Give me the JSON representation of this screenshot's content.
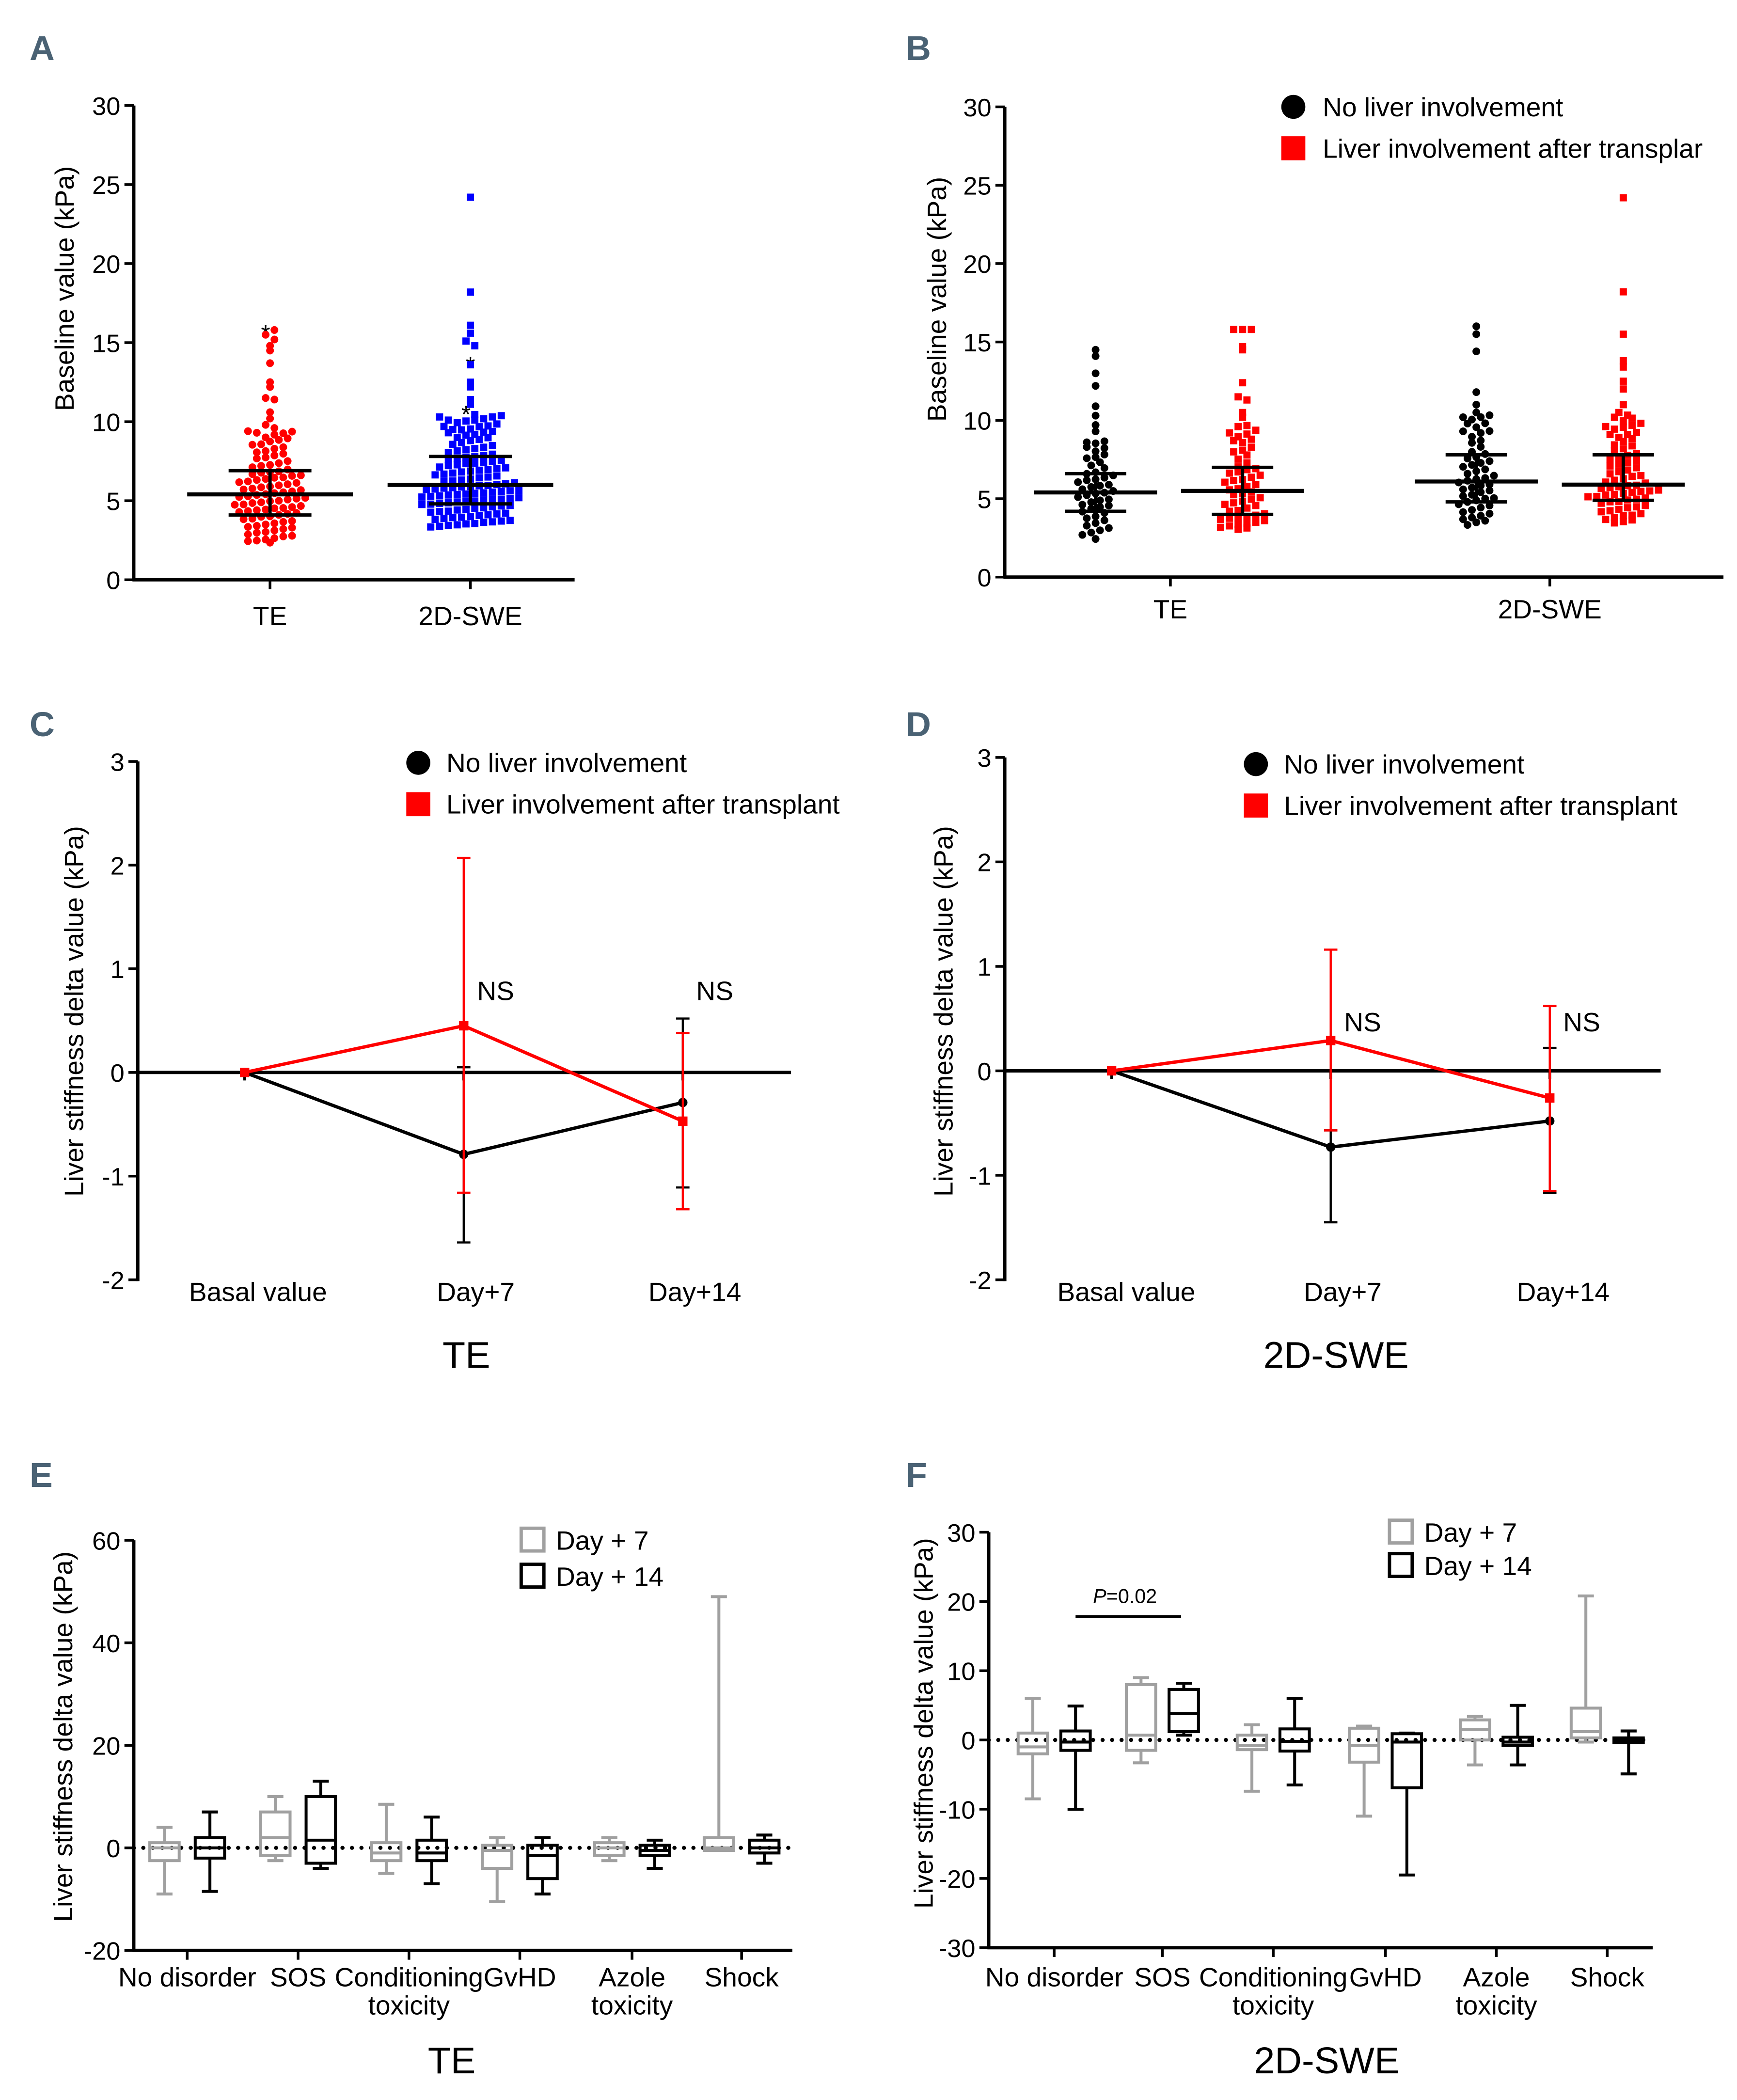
{
  "panel_labels": {
    "A": "A",
    "B": "B",
    "C": "C",
    "D": "D",
    "E": "E",
    "F": "F"
  },
  "colors": {
    "red": "#ff0000",
    "blue": "#0000ff",
    "black": "#000000",
    "gray": "#a0a0a0",
    "panel_label": "#4a6274"
  },
  "legend": {
    "no_liver": "No liver involvement",
    "liver_after": "Liver involvement after transplant",
    "liver_after_truncated": "Liver involvement after transplar",
    "day7": "Day + 7",
    "day14": "Day + 14"
  },
  "chart_data": [
    {
      "id": "A",
      "type": "scatter",
      "ylabel": "Baseline value (kPa)",
      "ylim": [
        0,
        30
      ],
      "yticks": [
        0,
        5,
        10,
        15,
        20,
        25,
        30
      ],
      "categories": [
        "TE",
        "2D-SWE"
      ],
      "groups": [
        {
          "category": "TE",
          "color": "#ff0000",
          "marker": "circle",
          "n": 110,
          "min": 2.3,
          "q1": 4.1,
          "median": 5.4,
          "q3": 6.9,
          "max": 15.8,
          "high": [
            15.8,
            15.8,
            15.5,
            15.2,
            14.8,
            14.5,
            13.7,
            12.5,
            12.2,
            11.5,
            11.4,
            10.6,
            10.2,
            9.8,
            9.6,
            9.4,
            9.3
          ],
          "asterisks": [
            15.8
          ]
        },
        {
          "category": "2D-SWE",
          "color": "#0000ff",
          "marker": "square",
          "n": 140,
          "min": 3.3,
          "q1": 4.8,
          "median": 6.0,
          "q3": 7.8,
          "max": 24.2,
          "high": [
            24.2,
            18.2,
            16.1,
            15.6,
            15.1,
            14.8,
            13.8,
            13.6,
            12.5,
            12.2,
            11.4,
            11.1,
            10.7,
            10.3,
            10.1,
            9.7,
            9.5,
            9.3
          ],
          "asterisks": [
            13.8,
            10.7
          ]
        }
      ]
    },
    {
      "id": "B",
      "type": "scatter",
      "ylabel": "Baseline value (kPa)",
      "ylim": [
        0,
        30
      ],
      "yticks": [
        0,
        5,
        10,
        15,
        20,
        25,
        30
      ],
      "categories": [
        "TE",
        "2D-SWE"
      ],
      "legend": [
        "No liver involvement",
        "Liver involvement after transplant"
      ],
      "groups": [
        {
          "category": "TE",
          "series": "No liver involvement",
          "color": "#000000",
          "marker": "circle",
          "n": 55,
          "min": 2.4,
          "q1": 4.2,
          "median": 5.4,
          "q3": 6.6,
          "max": 14.5,
          "high": [
            14.5,
            14.1,
            13.0,
            12.2,
            10.9,
            10.3,
            9.7,
            9.3,
            8.6,
            8.3
          ]
        },
        {
          "category": "TE",
          "series": "Liver involvement after transplant",
          "color": "#ff0000",
          "marker": "square",
          "n": 65,
          "min": 3.0,
          "q1": 4.0,
          "median": 5.5,
          "q3": 7.0,
          "max": 15.8,
          "high": [
            15.8,
            15.8,
            15.8,
            14.7,
            14.5,
            12.4,
            11.5,
            11.3,
            10.5,
            10.2,
            9.6,
            9.2,
            8.7
          ]
        },
        {
          "category": "2D-SWE",
          "series": "No liver involvement",
          "color": "#000000",
          "marker": "circle",
          "n": 60,
          "min": 3.3,
          "q1": 4.8,
          "median": 6.1,
          "q3": 7.8,
          "max": 16.0,
          "high": [
            16.0,
            15.5,
            14.4,
            11.8,
            11.0,
            10.5,
            10.2,
            9.8,
            9.3
          ]
        },
        {
          "category": "2D-SWE",
          "series": "Liver involvement after transplant",
          "color": "#ff0000",
          "marker": "square",
          "n": 80,
          "min": 3.4,
          "q1": 4.9,
          "median": 5.9,
          "q3": 7.8,
          "max": 24.2,
          "high": [
            24.2,
            18.2,
            15.5,
            13.8,
            13.4,
            12.5,
            12.0,
            11.0,
            10.5,
            10.2,
            9.6,
            9.1
          ]
        }
      ]
    },
    {
      "id": "C",
      "type": "line",
      "title": "TE",
      "ylabel": "Liver stiffness delta value (kPa)",
      "ylim": [
        -2,
        3
      ],
      "yticks": [
        -2,
        -1,
        0,
        1,
        2,
        3
      ],
      "categories": [
        "Basal value",
        "Day+7",
        "Day+14"
      ],
      "series": [
        {
          "name": "No liver involvement",
          "color": "#000000",
          "values": [
            0,
            -0.79,
            -0.29
          ],
          "err_low": [
            0,
            -1.64,
            -1.11
          ],
          "err_high": [
            0,
            0.05,
            0.52
          ]
        },
        {
          "name": "Liver involvement after transplant",
          "color": "#ff0000",
          "values": [
            0,
            0.45,
            -0.47
          ],
          "err_low": [
            0,
            -1.16,
            -1.32
          ],
          "err_high": [
            0,
            2.07,
            0.38
          ]
        }
      ],
      "annotations": [
        {
          "category": "Day+7",
          "text": "NS",
          "y": 0.8
        },
        {
          "category": "Day+14",
          "text": "NS",
          "y": 0.8
        }
      ]
    },
    {
      "id": "D",
      "type": "line",
      "title": "2D-SWE",
      "ylabel": "Liver stiffness delta value (kPa)",
      "ylim": [
        -2,
        3
      ],
      "yticks": [
        -2,
        -1,
        0,
        1,
        2,
        3
      ],
      "categories": [
        "Basal value",
        "Day+7",
        "Day+14"
      ],
      "series": [
        {
          "name": "No liver involvement",
          "color": "#000000",
          "values": [
            0,
            -0.73,
            -0.48
          ],
          "err_low": [
            0,
            -1.45,
            -1.17
          ],
          "err_high": [
            0,
            -0.57,
            0.22
          ]
        },
        {
          "name": "Liver involvement after transplant",
          "color": "#ff0000",
          "values": [
            0,
            0.29,
            -0.26
          ],
          "err_low": [
            0,
            -0.57,
            -1.15
          ],
          "err_high": [
            0,
            1.16,
            0.62
          ]
        }
      ],
      "annotations": [
        {
          "category": "Day+7",
          "text": "NS",
          "y": 0.48
        },
        {
          "category": "Day+14",
          "text": "NS",
          "y": 0.48
        }
      ]
    },
    {
      "id": "E",
      "type": "box",
      "title": "TE",
      "ylabel": "Liver stiffness delta value (kPa)",
      "ylim": [
        -20,
        60
      ],
      "yticks": [
        -20,
        0,
        20,
        40,
        60
      ],
      "categories": [
        [
          "No disorder"
        ],
        [
          "SOS"
        ],
        [
          "Conditioning",
          "toxicity"
        ],
        [
          "GvHD"
        ],
        [
          "Azole",
          "toxicity"
        ],
        [
          "Shock"
        ]
      ],
      "series": [
        {
          "name": "Day + 7",
          "color": "#a0a0a0",
          "boxes": [
            [
              -9,
              -2.5,
              0,
              1,
              4
            ],
            [
              -2.5,
              -1.5,
              2,
              7,
              10
            ],
            [
              -5,
              -2.5,
              -1,
              1,
              8.5
            ],
            [
              -10.5,
              -4,
              -0.5,
              0.5,
              2
            ],
            [
              -2.5,
              -1.5,
              0,
              1,
              2
            ],
            [
              -0.5,
              -0.5,
              0,
              2,
              49
            ]
          ]
        },
        {
          "name": "Day + 14",
          "color": "#000000",
          "boxes": [
            [
              -8.5,
              -2,
              0,
              2,
              7
            ],
            [
              -4,
              -3,
              1.5,
              10,
              13
            ],
            [
              -7,
              -2.5,
              -1,
              1.5,
              6
            ],
            [
              -9,
              -6,
              -1.5,
              0.5,
              2
            ],
            [
              -4,
              -1.5,
              -0.5,
              0.5,
              1.5
            ],
            [
              -3,
              -1,
              0,
              1.5,
              2.5
            ]
          ]
        }
      ],
      "box_format": "[min, q1, median, q3, max]"
    },
    {
      "id": "F",
      "type": "box",
      "title": "2D-SWE",
      "ylabel": "Liver stiffness delta value (kPa)",
      "ylim": [
        -30,
        30
      ],
      "yticks": [
        -30,
        -20,
        -10,
        0,
        10,
        20,
        30
      ],
      "categories": [
        [
          "No disorder"
        ],
        [
          "SOS"
        ],
        [
          "Conditioning",
          "toxicity"
        ],
        [
          "GvHD"
        ],
        [
          "Azole",
          "toxicity"
        ],
        [
          "Shock"
        ]
      ],
      "series": [
        {
          "name": "Day + 7",
          "color": "#a0a0a0",
          "boxes": [
            [
              -8.5,
              -2,
              -1,
              1,
              6
            ],
            [
              -3.3,
              -1.5,
              0.7,
              8,
              9
            ],
            [
              -7.4,
              -1.4,
              -0.8,
              0.7,
              2.2
            ],
            [
              -11,
              -3.2,
              -0.8,
              1.7,
              2
            ],
            [
              -3.6,
              0,
              1.5,
              2.9,
              3.4
            ],
            [
              -0.3,
              0.3,
              1.2,
              4.6,
              20.8
            ]
          ]
        },
        {
          "name": "Day + 14",
          "color": "#000000",
          "boxes": [
            [
              -10,
              -1.5,
              -0.3,
              1.3,
              4.9
            ],
            [
              0.7,
              1.2,
              3.8,
              7.3,
              8.2
            ],
            [
              -6.5,
              -1.6,
              -0.2,
              1.6,
              6
            ],
            [
              -19.5,
              -6.9,
              -0.3,
              0.9,
              1
            ],
            [
              -3.6,
              -0.8,
              -0.3,
              0.4,
              5
            ],
            [
              -4.9,
              -0.4,
              -0.1,
              0.3,
              1.3
            ]
          ]
        }
      ],
      "box_format": "[min, q1, median, q3, max]",
      "significance": {
        "p_prefix": "P",
        "p_value": "=0.02",
        "y": 18
      }
    }
  ]
}
